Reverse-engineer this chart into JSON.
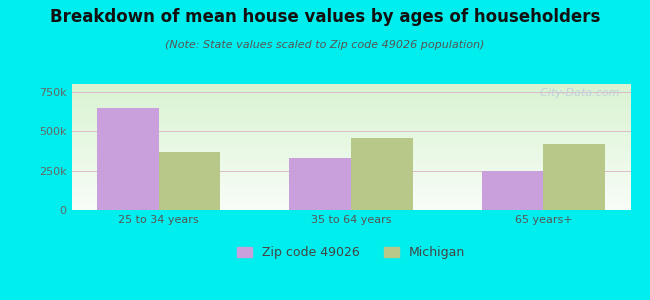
{
  "title": "Breakdown of mean house values by ages of householders",
  "subtitle": "(Note: State values scaled to Zip code 49026 population)",
  "categories": [
    "25 to 34 years",
    "35 to 64 years",
    "65 years+"
  ],
  "zip_values": [
    650000,
    330000,
    245000
  ],
  "state_values": [
    370000,
    455000,
    420000
  ],
  "zip_color": "#c9a0dc",
  "state_color": "#b8c888",
  "background_outer": "#00EEEE",
  "ylim": [
    0,
    800000
  ],
  "yticks": [
    0,
    250000,
    500000,
    750000
  ],
  "ytick_labels": [
    "0",
    "250k",
    "500k",
    "750k"
  ],
  "bar_width": 0.32,
  "legend_zip_label": "Zip code 49026",
  "legend_state_label": "Michigan",
  "watermark": "  City-Data.com",
  "title_fontsize": 12,
  "subtitle_fontsize": 8,
  "tick_fontsize": 8
}
